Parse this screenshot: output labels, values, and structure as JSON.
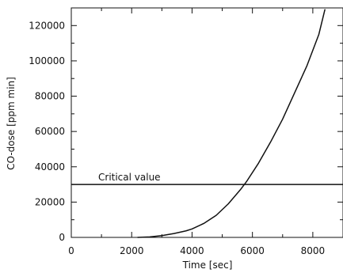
{
  "chart_data": {
    "type": "line",
    "xlabel": "Time [sec]",
    "ylabel": "CO-dose [ppm min]",
    "xlim": [
      0,
      9000
    ],
    "ylim": [
      0,
      130000
    ],
    "x_ticks": [
      0,
      2000,
      4000,
      6000,
      8000
    ],
    "y_ticks": [
      0,
      20000,
      40000,
      60000,
      80000,
      100000,
      120000
    ],
    "x_minor_step": 1000,
    "y_minor_step": 10000,
    "grid": false,
    "series": [
      {
        "x": [
          2200,
          2600,
          3000,
          3400,
          3800,
          4000,
          4400,
          4800,
          5200,
          5600,
          5800,
          6200,
          6600,
          7000,
          7400,
          7800,
          8200,
          8400
        ],
        "y": [
          0,
          300,
          1000,
          2200,
          3700,
          4800,
          8000,
          12500,
          19000,
          27000,
          31500,
          42000,
          54000,
          67000,
          82000,
          97000,
          115000,
          129000
        ]
      }
    ],
    "hlines": [
      {
        "y": 30000,
        "label": "Critical value"
      }
    ],
    "colors": {
      "line": "#111111",
      "axis": "#111111",
      "text": "#111111",
      "background": "#ffffff"
    }
  }
}
